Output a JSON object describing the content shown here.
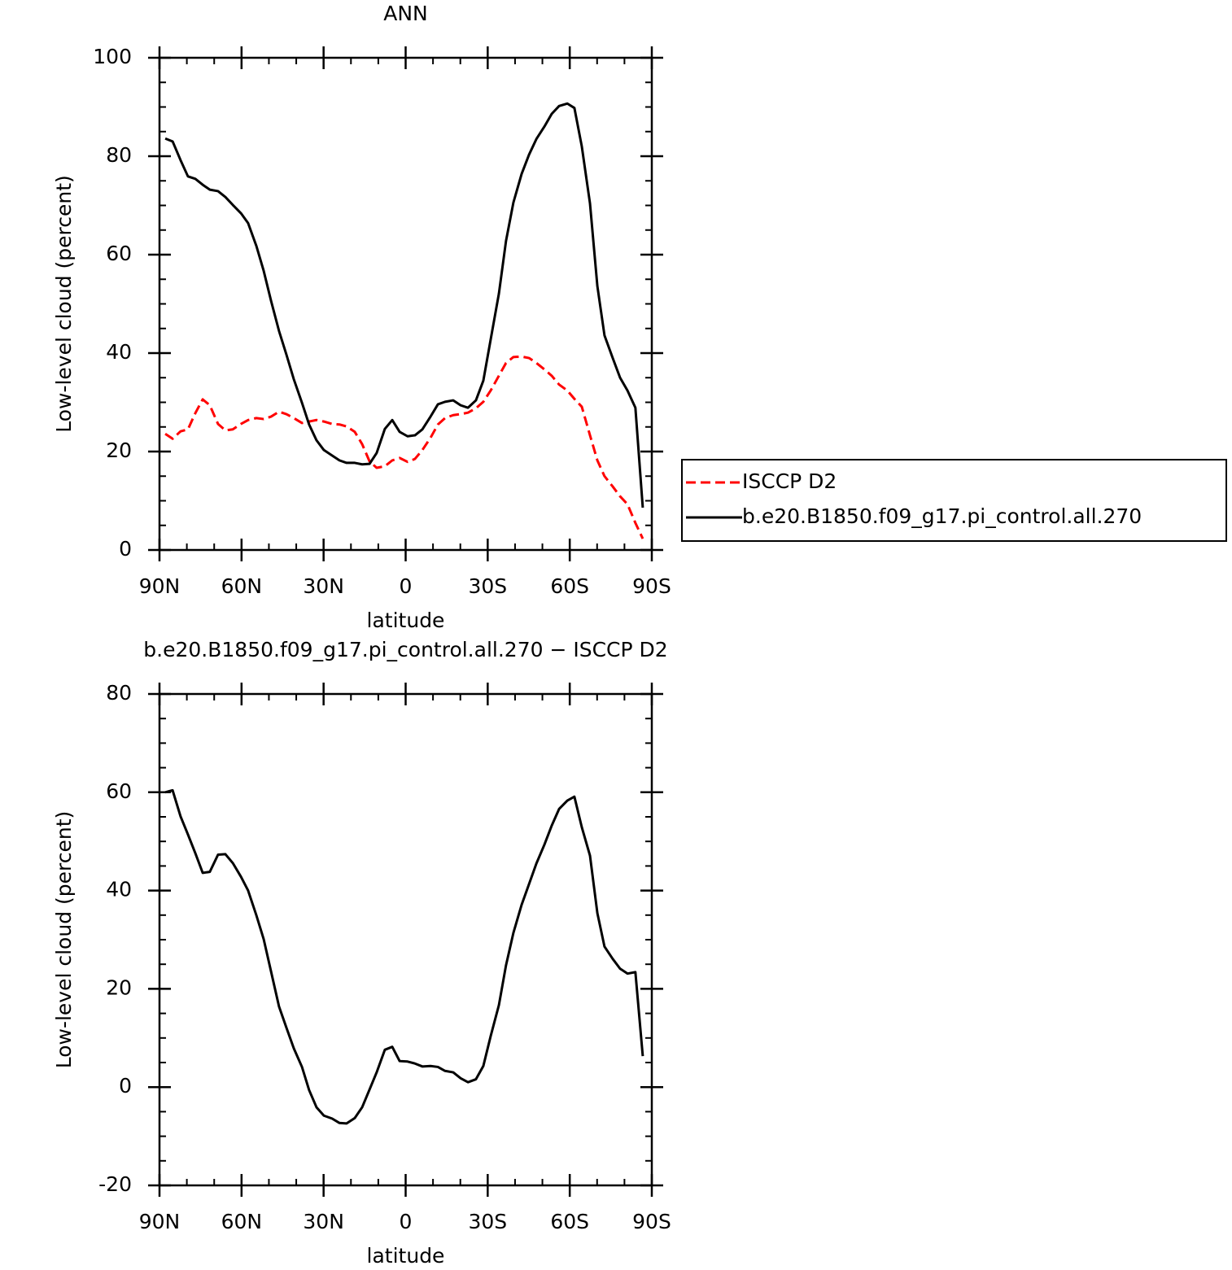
{
  "chart_data": [
    {
      "type": "line",
      "title": "ANN",
      "x_label": "latitude",
      "y_label": "Low-level cloud (percent)",
      "x": [
        87.9,
        85.2,
        82.3,
        79.6,
        76.9,
        74.2,
        71.6,
        68.6,
        65.9,
        63.2,
        60.2,
        57.6,
        54.6,
        51.9,
        49.2,
        46.3,
        43.6,
        40.9,
        37.9,
        35.3,
        32.6,
        29.9,
        26.9,
        24.2,
        21.6,
        18.6,
        15.9,
        13.2,
        10.6,
        7.6,
        4.9,
        2.2,
        -0.7,
        -3.4,
        -6.1,
        -9.1,
        -11.8,
        -14.4,
        -17.4,
        -20.1,
        -22.8,
        -25.7,
        -28.4,
        -31.1,
        -34.1,
        -36.7,
        -39.4,
        -42.4,
        -45.1,
        -47.8,
        -50.7,
        -53.4,
        -56.1,
        -59.1,
        -61.7,
        -64.4,
        -67.4,
        -70.1,
        -72.7,
        -75.7,
        -78.4,
        -81.1,
        -84.0,
        -86.7
      ],
      "series": [
        {
          "name": "ISCCP D2",
          "color": "#ff0000",
          "linestyle": "dashed",
          "values": [
            23.6,
            22.6,
            24.1,
            24.5,
            27.8,
            30.6,
            29.4,
            25.6,
            24.3,
            24.5,
            25.6,
            26.4,
            26.8,
            26.6,
            27.1,
            28.1,
            27.6,
            26.8,
            25.8,
            26.1,
            26.4,
            26.1,
            25.6,
            25.5,
            25.1,
            24.0,
            21.5,
            18.0,
            16.7,
            17.0,
            18.2,
            18.7,
            17.9,
            18.5,
            20.3,
            22.8,
            25.5,
            26.8,
            27.4,
            27.6,
            27.9,
            28.8,
            30.1,
            32.4,
            35.4,
            38.0,
            39.2,
            39.3,
            39.0,
            38.0,
            36.7,
            35.4,
            33.6,
            32.4,
            30.7,
            29.1,
            23.3,
            18.2,
            15.0,
            12.9,
            10.9,
            9.3,
            5.5,
            2.3
          ]
        },
        {
          "name": "b.e20.B1850.f09_g17.pi_control.all.270",
          "color": "#000000",
          "linestyle": "solid",
          "values": [
            83.6,
            83.0,
            79.2,
            75.9,
            75.4,
            74.2,
            73.2,
            72.9,
            71.7,
            70.1,
            68.4,
            66.4,
            61.8,
            56.7,
            50.6,
            44.5,
            39.7,
            34.7,
            29.9,
            25.5,
            22.3,
            20.3,
            19.2,
            18.2,
            17.7,
            17.7,
            17.4,
            17.5,
            19.7,
            24.6,
            26.4,
            24.0,
            23.1,
            23.3,
            24.5,
            27.1,
            29.6,
            30.1,
            30.4,
            29.4,
            28.9,
            30.4,
            34.4,
            42.8,
            52.1,
            62.8,
            70.6,
            76.4,
            80.3,
            83.5,
            86.0,
            88.6,
            90.2,
            90.7,
            89.8,
            82.0,
            70.4,
            53.6,
            43.6,
            39.0,
            35.0,
            32.4,
            28.9,
            8.6
          ]
        }
      ],
      "xlim": [
        90,
        -90
      ],
      "xticks": [
        {
          "value": 90,
          "label": "90N"
        },
        {
          "value": 60,
          "label": "60N"
        },
        {
          "value": 30,
          "label": "30N"
        },
        0,
        {
          "value": -30,
          "label": "30S"
        },
        {
          "value": -60,
          "label": "60S"
        },
        {
          "value": -90,
          "label": "90S"
        }
      ],
      "xminorticks": [
        80,
        70,
        50,
        40,
        20,
        10,
        -10,
        -20,
        -40,
        -50,
        -70,
        -80
      ],
      "ylim": [
        0,
        100
      ],
      "yticks": [
        0,
        20,
        40,
        60,
        80,
        100
      ],
      "yminorticks": [
        5,
        10,
        15,
        25,
        30,
        35,
        45,
        50,
        55,
        65,
        70,
        75,
        85,
        90,
        95
      ],
      "legend": "right"
    },
    {
      "type": "line",
      "title": "b.e20.B1850.f09_g17.pi_control.all.270 − ISCCP D2",
      "x_label": "latitude",
      "y_label": "Low-level cloud (percent)",
      "x": [
        87.9,
        85.2,
        82.3,
        79.6,
        76.9,
        74.2,
        71.6,
        68.6,
        65.9,
        63.2,
        60.2,
        57.6,
        54.6,
        51.9,
        49.2,
        46.3,
        43.6,
        40.9,
        37.9,
        35.3,
        32.6,
        29.9,
        26.9,
        24.2,
        21.6,
        18.6,
        15.9,
        13.2,
        10.6,
        7.6,
        4.9,
        2.2,
        -0.7,
        -3.4,
        -6.1,
        -9.1,
        -11.8,
        -14.4,
        -17.4,
        -20.1,
        -22.8,
        -25.7,
        -28.4,
        -31.1,
        -34.1,
        -36.7,
        -39.4,
        -42.4,
        -45.1,
        -47.8,
        -50.7,
        -53.4,
        -56.1,
        -59.1,
        -61.7,
        -64.4,
        -67.4,
        -70.1,
        -72.7,
        -75.7,
        -78.4,
        -81.1,
        -84.0,
        -86.7
      ],
      "series": [
        {
          "color": "#000000",
          "linestyle": "solid",
          "values": [
            60.0,
            60.4,
            55.1,
            51.4,
            47.6,
            43.6,
            43.8,
            47.3,
            47.4,
            45.6,
            42.8,
            40.0,
            35.0,
            30.1,
            23.5,
            16.4,
            12.1,
            7.9,
            4.1,
            -0.6,
            -4.1,
            -5.8,
            -6.4,
            -7.3,
            -7.4,
            -6.3,
            -4.1,
            -0.5,
            3.0,
            7.6,
            8.2,
            5.3,
            5.2,
            4.8,
            4.2,
            4.3,
            4.1,
            3.3,
            3.0,
            1.8,
            1.0,
            1.6,
            4.3,
            10.4,
            16.7,
            24.8,
            31.4,
            37.1,
            41.3,
            45.5,
            49.3,
            53.2,
            56.6,
            58.3,
            59.1,
            52.9,
            47.1,
            35.4,
            28.6,
            26.1,
            24.1,
            23.1,
            23.4,
            6.3
          ]
        }
      ],
      "xlim": [
        90,
        -90
      ],
      "xticks": [
        {
          "value": 90,
          "label": "90N"
        },
        {
          "value": 60,
          "label": "60N"
        },
        {
          "value": 30,
          "label": "30N"
        },
        0,
        {
          "value": -30,
          "label": "30S"
        },
        {
          "value": -60,
          "label": "60S"
        },
        {
          "value": -90,
          "label": "90S"
        }
      ],
      "xminorticks": [
        80,
        70,
        50,
        40,
        20,
        10,
        -10,
        -20,
        -40,
        -50,
        -70,
        -80
      ],
      "ylim": [
        -20,
        80
      ],
      "yticks": [
        -20,
        0,
        20,
        40,
        60,
        80
      ],
      "yminorticks": [
        -15,
        -10,
        -5,
        5,
        10,
        15,
        25,
        30,
        35,
        45,
        50,
        55,
        65,
        70,
        75
      ]
    }
  ]
}
